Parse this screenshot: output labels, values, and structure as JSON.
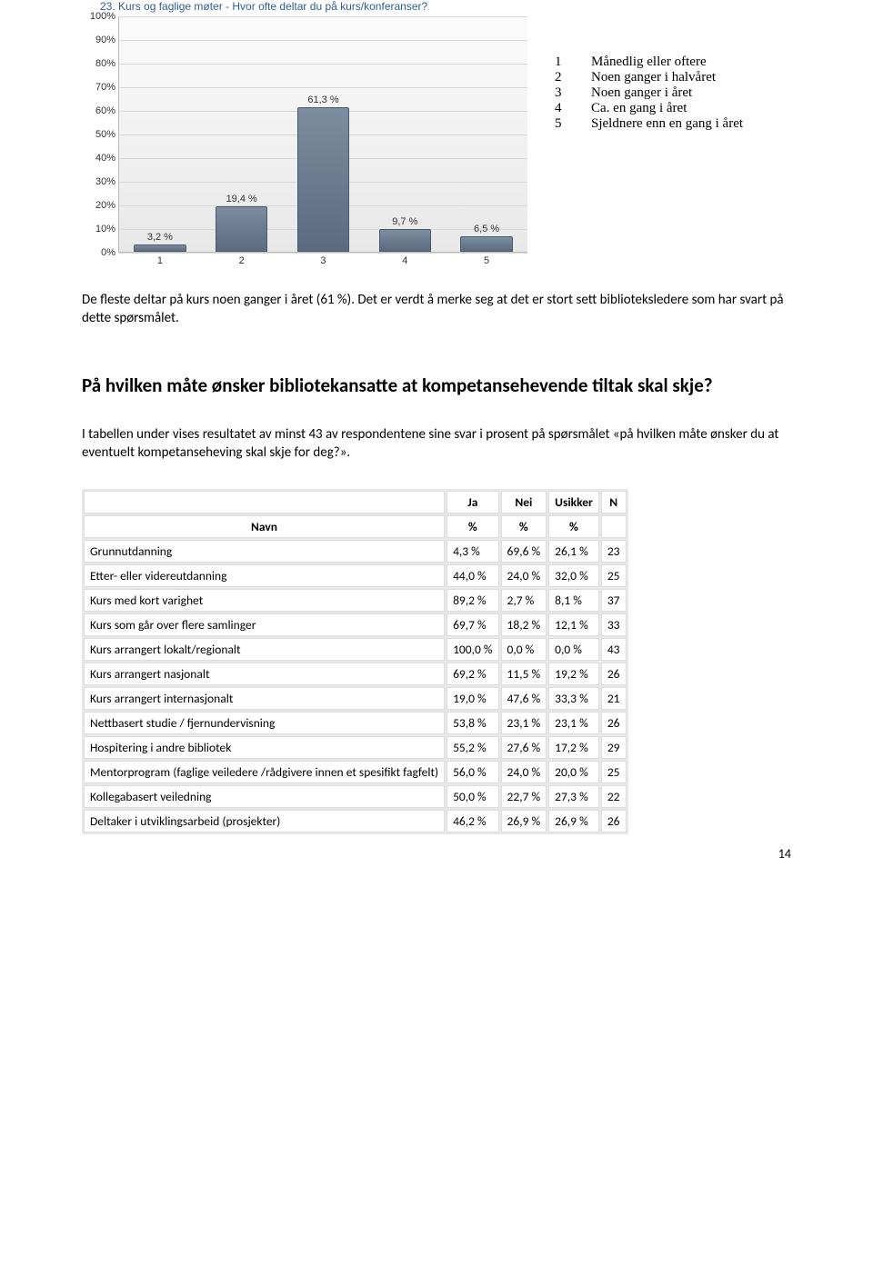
{
  "chart": {
    "title": "23. Kurs og faglige møter - Hvor ofte deltar du på kurs/konferanser?",
    "type": "bar",
    "ylim": [
      0,
      100
    ],
    "ytick_step": 10,
    "ytick_suffix": "%",
    "bar_color_top": "#7d8da0",
    "bar_color_bottom": "#5a6b80",
    "bar_border": "#4a5a6e",
    "background_top": "#fbfbfb",
    "background_bottom": "#e8e8e8",
    "gridline_color": "#d8d8d8",
    "axis_color": "#bbbbbb",
    "label_color": "#333333",
    "title_color": "#2f5d9b",
    "title_fontsize": 12,
    "tick_fontsize": 11,
    "categories": [
      "1",
      "2",
      "3",
      "4",
      "5"
    ],
    "values": [
      3.2,
      19.4,
      61.3,
      9.7,
      6.5
    ],
    "value_labels": [
      "3,2 %",
      "19,4 %",
      "61,3 %",
      "9,7 %",
      "6,5 %"
    ]
  },
  "legend": {
    "items": [
      {
        "num": "1",
        "label": "Månedlig eller oftere"
      },
      {
        "num": "2",
        "label": "Noen ganger i halvåret"
      },
      {
        "num": "3",
        "label": "Noen ganger i året"
      },
      {
        "num": "4",
        "label": "Ca. en gang i året"
      },
      {
        "num": "5",
        "label": "Sjeldnere enn en gang i året"
      }
    ]
  },
  "text": {
    "p1": "De fleste deltar på kurs noen ganger i året (61 %). Det er verdt å merke seg at det er stort sett biblioteksledere som har svart på dette spørsmålet.",
    "heading": "På hvilken måte ønsker bibliotekansatte at kompetansehevende tiltak skal skje?",
    "p2": "I tabellen under vises resultatet av minst 43 av respondentene sine svar i prosent på spørsmålet «på hvilken måte ønsker du at eventuelt kompetanseheving skal skje for deg?»."
  },
  "table": {
    "header": {
      "name": "Navn",
      "ja": "Ja",
      "nei": "Nei",
      "usikker": "Usikker",
      "n": "N",
      "pct": "%"
    },
    "rows": [
      {
        "name": "Grunnutdanning",
        "ja": "4,3 %",
        "nei": "69,6 %",
        "usikker": "26,1 %",
        "n": "23"
      },
      {
        "name": "Etter- eller videreutdanning",
        "ja": "44,0 %",
        "nei": "24,0 %",
        "usikker": "32,0 %",
        "n": "25"
      },
      {
        "name": "Kurs med kort varighet",
        "ja": "89,2 %",
        "nei": "2,7 %",
        "usikker": "8,1 %",
        "n": "37"
      },
      {
        "name": "Kurs som går over flere samlinger",
        "ja": "69,7 %",
        "nei": "18,2 %",
        "usikker": "12,1 %",
        "n": "33"
      },
      {
        "name": "Kurs arrangert lokalt/regionalt",
        "ja": "100,0 %",
        "nei": "0,0 %",
        "usikker": "0,0 %",
        "n": "43"
      },
      {
        "name": "Kurs arrangert nasjonalt",
        "ja": "69,2 %",
        "nei": "11,5 %",
        "usikker": "19,2 %",
        "n": "26"
      },
      {
        "name": "Kurs arrangert internasjonalt",
        "ja": "19,0 %",
        "nei": "47,6 %",
        "usikker": "33,3 %",
        "n": "21"
      },
      {
        "name": "Nettbasert studie / fjernundervisning",
        "ja": "53,8 %",
        "nei": "23,1 %",
        "usikker": "23,1 %",
        "n": "26"
      },
      {
        "name": "Hospitering i andre bibliotek",
        "ja": "55,2 %",
        "nei": "27,6 %",
        "usikker": "17,2 %",
        "n": "29"
      },
      {
        "name": "Mentorprogram (faglige veiledere /rådgivere innen et spesifikt fagfelt)",
        "ja": "56,0 %",
        "nei": "24,0 %",
        "usikker": "20,0 %",
        "n": "25"
      },
      {
        "name": "Kollegabasert veiledning",
        "ja": "50,0 %",
        "nei": "22,7 %",
        "usikker": "27,3 %",
        "n": "22"
      },
      {
        "name": "Deltaker i utviklingsarbeid (prosjekter)",
        "ja": "46,2 %",
        "nei": "26,9 %",
        "usikker": "26,9 %",
        "n": "26"
      }
    ]
  },
  "page_number": "14"
}
